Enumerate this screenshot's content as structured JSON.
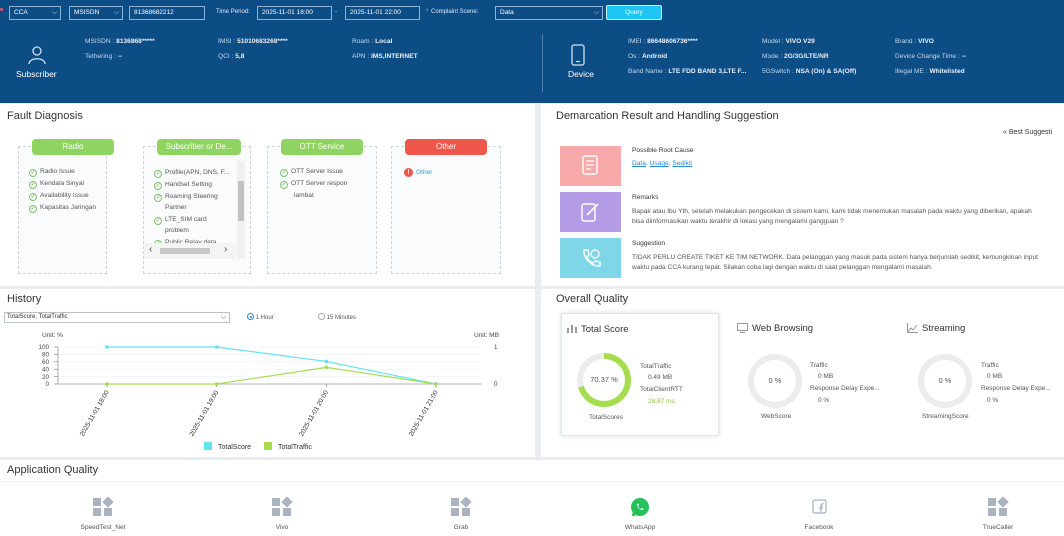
{
  "header": {
    "region": "CCA",
    "id_type": "MSISDN",
    "id_value": "81368682212",
    "time_period_label": "Time Period:",
    "time_start": "2025-11-01 18:00",
    "time_end": "2025-11-01 22:00",
    "complaint_scene_label": "Complaint Scene:",
    "complaint_scene": "Data",
    "query_label": "Query"
  },
  "subscriber": {
    "title": "Subscriber",
    "msisdn": "8136868*****",
    "tethering": "--",
    "imsi": "51010683268****",
    "qci": "5,8",
    "roam": "Local",
    "apn": "IMS,INTERNET",
    "labels": {
      "msisdn": "MSISDN :",
      "tethering": "Tethering :",
      "imsi": "IMSI :",
      "qci": "QCI :",
      "roam": "Roam :",
      "apn": "APN :"
    }
  },
  "device": {
    "title": "Device",
    "imei": "86648606736****",
    "os": "Android",
    "band_name": "LTE FDD BAND 3,LTE F...",
    "model": "VIVO V29",
    "mode": "2G/3G/LTE/NR",
    "fiveg_switch": "NSA (On) & SA(Off)",
    "brand": "VIVO",
    "device_change_time": "--",
    "illegal_me": "Whitelisted",
    "labels": {
      "imei": "IMEI :",
      "os": "Os :",
      "band_name": "Band Name :",
      "model": "Model :",
      "mode": "Mode :",
      "fiveg_switch": "5GSwitch :",
      "brand": "Brand :",
      "device_change_time": "Device Change Time :",
      "illegal_me": "Illegal ME :"
    }
  },
  "fault_diagnosis": {
    "title": "Fault Diagnosis",
    "cards": [
      {
        "title": "Radio",
        "color": "#8fd461",
        "items": [
          "Radio Issue",
          "Kendala Sinyal",
          "Availability Issue",
          "Kapasitas Jaringan"
        ]
      },
      {
        "title": "Subscriber or De...",
        "color": "#8fd461",
        "items": [
          "Profile(APN, DNS, F...",
          "Handset Setting",
          "Roaming Steering",
          "Partner",
          "LTE_SIM card",
          "problem",
          "Public Relay data"
        ]
      },
      {
        "title": "OTT Service",
        "color": "#8fd461",
        "items": [
          "OTT Server Issue",
          "OTT Server respon",
          "lambat"
        ]
      },
      {
        "title": "Other",
        "color": "#f0574b",
        "items": [
          "Other"
        ]
      }
    ]
  },
  "demarcation": {
    "title": "Demarcation Result and Handling Suggestion",
    "best_suggestion": "Best Suggesti",
    "root_cause_label": "Possible Root Cause",
    "root_causes": [
      "Data",
      "Usage",
      "Sedikit"
    ],
    "remarks_label": "Remarks",
    "remarks": "Bapak atau Ibu Yth, setelah melakukan pengecekan di sistem kami, kami tidak menemukan masalah pada waktu yang diberikan, apakah bisa diinformasikan waktu terakhir di lokasi yang mengalami gangguan ?",
    "suggestion_label": "Suggestion",
    "suggestion": "TIDAK PERLU CREATE TIKET KE TIM NETWORK. Data pelanggan yang masuk pada sistem hanya berjumlah sedikit, kemungkinan input waktu pada CCA kurang tepat. Silakan coba lagi dengan waktu di saat pelanggan mengalami masalah."
  },
  "history": {
    "title": "History",
    "metric_select": "TotalScore, TotalTraffic",
    "opt_1hour": "1 Hour",
    "opt_15min": "15 Minutes",
    "left_unit": "Unit: %",
    "right_unit": "Unit: MB"
  },
  "chart_data": {
    "type": "line",
    "x": [
      "2025-11-01 18:00",
      "2025-11-01 19:00",
      "2025-11-01 20:00",
      "2025-11-01 21:00"
    ],
    "series": [
      {
        "name": "TotalScore",
        "color": "#62e3f2",
        "axis": "left",
        "values": [
          100,
          100,
          61,
          0
        ]
      },
      {
        "name": "TotalTraffic",
        "color": "#a6dd4f",
        "axis": "right",
        "values": [
          0,
          0,
          0.45,
          0
        ]
      }
    ],
    "left_ylim": [
      0,
      100
    ],
    "left_ticks": [
      0,
      20,
      40,
      60,
      80,
      100
    ],
    "right_ylim": [
      0,
      1
    ],
    "right_ticks": [
      0,
      1
    ],
    "ylabel_left": "Unit: %",
    "ylabel_right": "Unit: MB",
    "legend": "bottom"
  },
  "overall_quality": {
    "title": "Overall Quality",
    "cards": [
      {
        "title": "Total Score",
        "score": "70.37 %",
        "score_value": 70.37,
        "ring_color": "#a6dd4f",
        "caption": "TotalScores",
        "metrics": [
          {
            "label": "TotalTraffic",
            "value": "0.49 MB"
          },
          {
            "label": "TotalClientRTT",
            "value": "28.87 ms"
          }
        ]
      },
      {
        "title": "Web Browsing",
        "score": "0 %",
        "score_value": 0,
        "ring_color": "#e8e8e8",
        "caption": "WebScore",
        "metrics": [
          {
            "label": "Traffic",
            "value": "0 MB"
          },
          {
            "label": "Response Delay Expe...",
            "value": "0 %"
          }
        ]
      },
      {
        "title": "Streaming",
        "score": "0 %",
        "score_value": 0,
        "ring_color": "#e8e8e8",
        "caption": "StreamingScore",
        "metrics": [
          {
            "label": "Traffic",
            "value": "0 MB"
          },
          {
            "label": "Response Delay Expe...",
            "value": "0 %"
          }
        ]
      }
    ]
  },
  "application_quality": {
    "title": "Application Quality",
    "apps": [
      "SpeedTest_Net",
      "Vivo",
      "Grab",
      "WhatsApp",
      "Facebook",
      "TrueCaller"
    ]
  }
}
